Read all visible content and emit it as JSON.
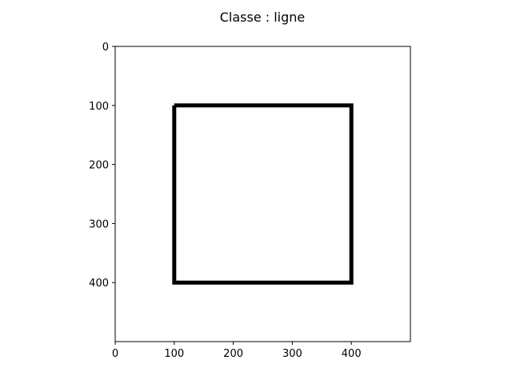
{
  "figure": {
    "title": "Classe : ligne",
    "background": "#ffffff",
    "axes_color": "#000000"
  },
  "chart_data": {
    "type": "line",
    "title": "Classe : ligne",
    "xlabel": "",
    "ylabel": "",
    "xlim": [
      0,
      500
    ],
    "ylim": [
      0,
      500
    ],
    "y_inverted": true,
    "grid": false,
    "legend": "none",
    "x_ticks": [
      0,
      100,
      200,
      300,
      400
    ],
    "y_ticks": [
      0,
      100,
      200,
      300,
      400
    ],
    "x_tick_labels": [
      "0",
      "100",
      "200",
      "300",
      "400"
    ],
    "y_tick_labels": [
      "0",
      "100",
      "200",
      "300",
      "400"
    ],
    "series": [
      {
        "color": "#000000",
        "closed": true,
        "points": [
          [
            100,
            100
          ],
          [
            400,
            100
          ],
          [
            400,
            400
          ],
          [
            100,
            400
          ]
        ]
      }
    ]
  }
}
